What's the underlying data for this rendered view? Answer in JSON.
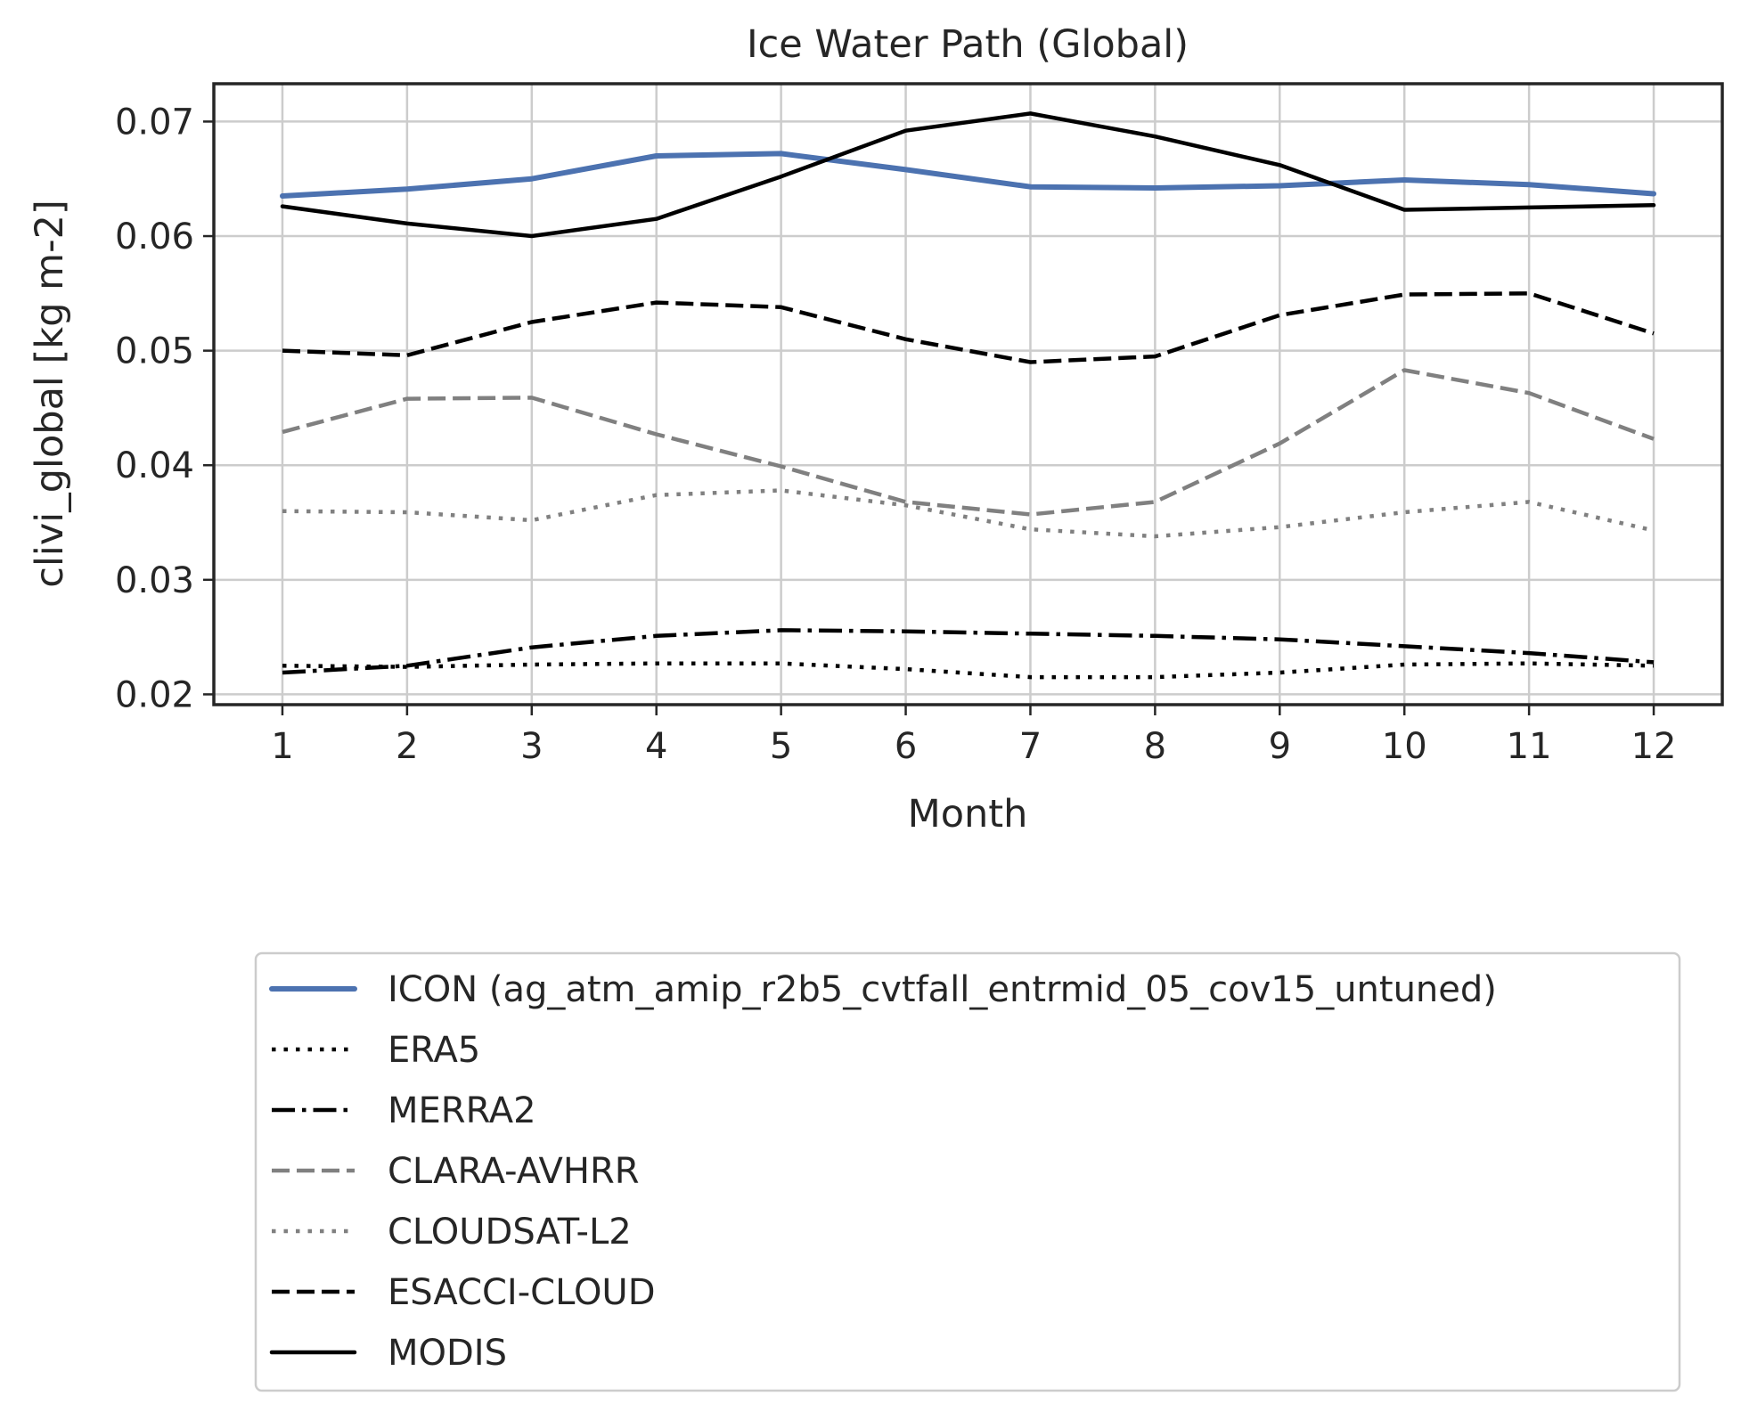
{
  "chart_data": {
    "type": "line",
    "title": "Ice Water Path (Global)",
    "xlabel": "Month",
    "ylabel": "clivi_global [kg m-2]",
    "x": [
      1,
      2,
      3,
      4,
      5,
      6,
      7,
      8,
      9,
      10,
      11,
      12
    ],
    "x_ticks": [
      "1",
      "2",
      "3",
      "4",
      "5",
      "6",
      "7",
      "8",
      "9",
      "10",
      "11",
      "12"
    ],
    "y_ticks": [
      "0.02",
      "0.03",
      "0.04",
      "0.05",
      "0.06",
      "0.07"
    ],
    "xlim": [
      0.45,
      12.55
    ],
    "ylim": [
      0.0191,
      0.0733
    ],
    "grid": true,
    "legend_placement": "below",
    "series": [
      {
        "name": "ICON (ag_atm_amip_r2b5_cvtfall_entrmid_05_cov15_untuned)",
        "color": "#4c72b0",
        "style": "solid",
        "width": 6,
        "values": [
          0.0635,
          0.0641,
          0.065,
          0.067,
          0.0672,
          0.0658,
          0.0643,
          0.0642,
          0.0644,
          0.0649,
          0.0645,
          0.0637
        ]
      },
      {
        "name": "ERA5",
        "color": "#000000",
        "style": "dotted",
        "width": 4.5,
        "values": [
          0.0225,
          0.0224,
          0.0226,
          0.0227,
          0.0227,
          0.0222,
          0.0215,
          0.0215,
          0.0219,
          0.0226,
          0.0227,
          0.0225
        ]
      },
      {
        "name": "MERRA2",
        "color": "#000000",
        "style": "dashdot",
        "width": 4.5,
        "values": [
          0.0219,
          0.0225,
          0.0241,
          0.0251,
          0.0256,
          0.0255,
          0.0253,
          0.0251,
          0.0248,
          0.0242,
          0.0236,
          0.0228
        ]
      },
      {
        "name": "CLARA-AVHRR",
        "color": "#808080",
        "style": "dashed",
        "width": 4.5,
        "values": [
          0.0429,
          0.0458,
          0.0459,
          0.0427,
          0.0399,
          0.0368,
          0.0357,
          0.0368,
          0.0419,
          0.0483,
          0.0463,
          0.0423
        ]
      },
      {
        "name": "CLOUDSAT-L2",
        "color": "#808080",
        "style": "dotted",
        "width": 4.5,
        "values": [
          0.036,
          0.0359,
          0.0352,
          0.0374,
          0.0378,
          0.0365,
          0.0344,
          0.0338,
          0.0346,
          0.0359,
          0.0368,
          0.0343
        ]
      },
      {
        "name": "ESACCI-CLOUD",
        "color": "#000000",
        "style": "dashed",
        "width": 4.5,
        "values": [
          0.05,
          0.0496,
          0.0525,
          0.0542,
          0.0538,
          0.051,
          0.049,
          0.0495,
          0.0531,
          0.0549,
          0.055,
          0.0515
        ]
      },
      {
        "name": "MODIS",
        "color": "#000000",
        "style": "solid",
        "width": 4.5,
        "values": [
          0.0626,
          0.0611,
          0.06,
          0.0615,
          0.0652,
          0.0692,
          0.0707,
          0.0687,
          0.0662,
          0.0623,
          0.0625,
          0.0627
        ]
      }
    ]
  }
}
